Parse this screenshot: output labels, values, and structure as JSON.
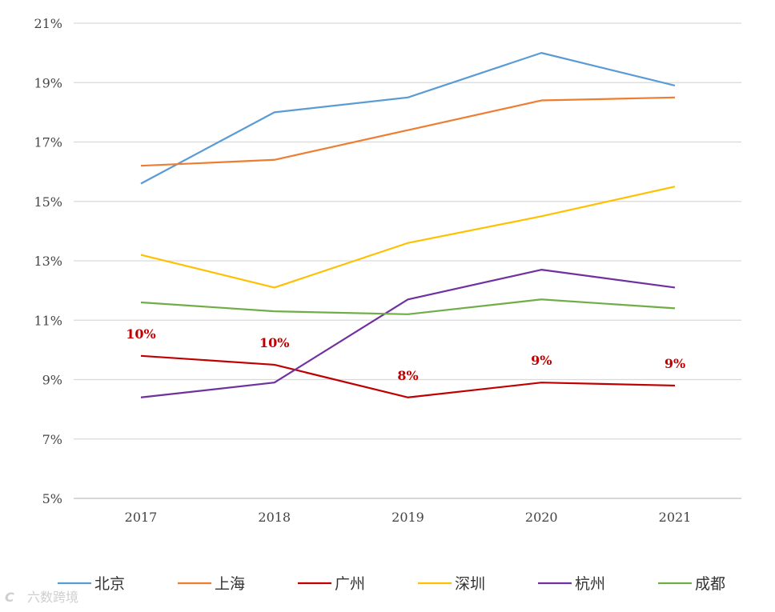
{
  "chart_data": {
    "type": "line",
    "categories": [
      "2017",
      "2018",
      "2019",
      "2020",
      "2021"
    ],
    "ylim": [
      5,
      21
    ],
    "yticks": [
      5,
      7,
      9,
      11,
      13,
      15,
      17,
      19,
      21
    ],
    "ytick_labels": [
      "5%",
      "7%",
      "9%",
      "11%",
      "13%",
      "15%",
      "17%",
      "19%",
      "21%"
    ],
    "grid": true,
    "legend_position": "bottom",
    "series": [
      {
        "name": "北京",
        "color": "#5b9bd5",
        "values": [
          15.6,
          18.0,
          18.5,
          20.0,
          18.9
        ]
      },
      {
        "name": "上海",
        "color": "#ed7d31",
        "values": [
          16.2,
          16.4,
          17.4,
          18.4,
          18.5
        ]
      },
      {
        "name": "广州",
        "color": "#c00000",
        "values": [
          9.8,
          9.5,
          8.4,
          8.9,
          8.8
        ],
        "data_labels": [
          "10%",
          "10%",
          "8%",
          "9%",
          "9%"
        ]
      },
      {
        "name": "深圳",
        "color": "#ffc000",
        "values": [
          13.2,
          12.1,
          13.6,
          14.5,
          15.5
        ]
      },
      {
        "name": "杭州",
        "color": "#7030a0",
        "values": [
          8.4,
          8.9,
          11.7,
          12.7,
          12.1
        ]
      },
      {
        "name": "成都",
        "color": "#70ad47",
        "values": [
          11.6,
          11.3,
          11.2,
          11.7,
          11.4
        ]
      }
    ]
  },
  "watermark": {
    "icon": "C",
    "text": "六数跨境"
  }
}
